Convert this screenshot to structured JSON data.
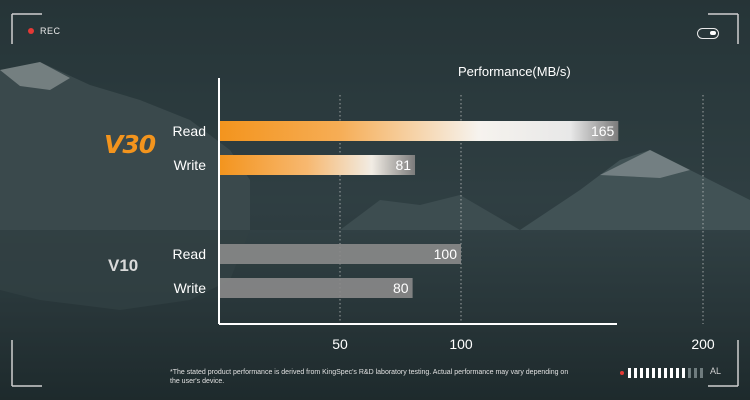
{
  "overlay": {
    "rec_label": "REC",
    "toggle_icon": "toggle-icon",
    "meter_label": "AL",
    "meter_level": 0.8
  },
  "brand": {
    "v30_logo": "V30",
    "v10_label": "V10"
  },
  "footnote": "*The stated product performance is derived from KingSpec's R&D laboratory testing. Actual performance may vary depending on the user's device.",
  "colors": {
    "v30_bar": "#f3941d",
    "v10_bar": "#8a8a8a",
    "accent": "#f3941d",
    "rec_dot": "#e53935"
  },
  "chart_data": {
    "type": "bar",
    "orientation": "horizontal",
    "title": "Performance(MB/s)",
    "xlabel": "",
    "ylabel": "",
    "xlim": [
      0,
      200
    ],
    "xticks": [
      50,
      100,
      200
    ],
    "grid": true,
    "groups": [
      {
        "name": "V30",
        "bars": [
          {
            "label": "Read",
            "value": 165
          },
          {
            "label": "Write",
            "value": 81
          }
        ]
      },
      {
        "name": "V10",
        "bars": [
          {
            "label": "Read",
            "value": 100
          },
          {
            "label": "Write",
            "value": 80
          }
        ]
      }
    ]
  }
}
